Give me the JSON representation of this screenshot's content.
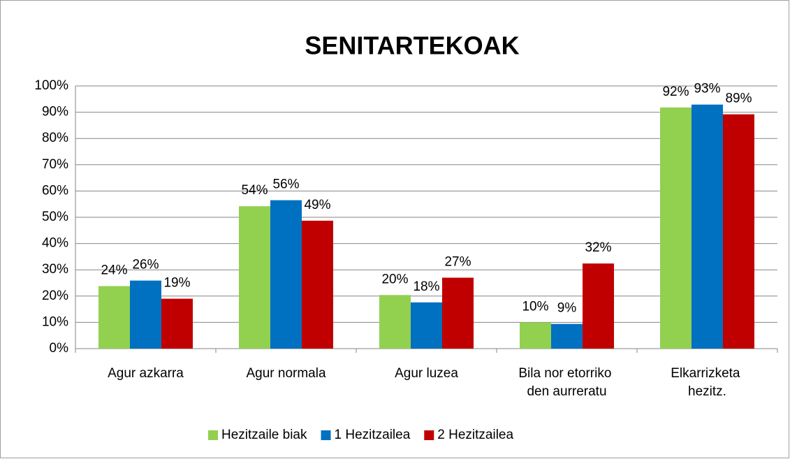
{
  "chart_data": {
    "type": "bar",
    "title": "SENITARTEKOAK",
    "categories": [
      "Agur azkarra",
      "Agur normala",
      "Agur luzea",
      "Bila nor etorriko den aurreratu",
      "Elkarrizketa hezitz."
    ],
    "series": [
      {
        "name": "Hezitzaile biak",
        "color": "#92d050",
        "values": [
          23.8,
          54.2,
          20.4,
          10,
          91.8
        ],
        "value_labels": [
          "24%",
          "54%",
          "20%",
          "10%",
          "92%"
        ]
      },
      {
        "name": "1 Hezitzailea",
        "color": "#0070c0",
        "values": [
          25.9,
          56.5,
          17.6,
          9.4,
          92.9
        ],
        "value_labels": [
          "26%",
          "56%",
          "18%",
          "9%",
          "93%"
        ]
      },
      {
        "name": "2 Hezitzailea",
        "color": "#c00000",
        "values": [
          19,
          48.7,
          27,
          32.4,
          89.2
        ],
        "value_labels": [
          "19%",
          "49%",
          "27%",
          "32%",
          "89%"
        ]
      }
    ],
    "ylim": [
      0,
      100
    ],
    "yticks": [
      {
        "value": 0,
        "label": "0%"
      },
      {
        "value": 10,
        "label": "10%"
      },
      {
        "value": 20,
        "label": "20%"
      },
      {
        "value": 30,
        "label": "30%"
      },
      {
        "value": 40,
        "label": "40%"
      },
      {
        "value": 50,
        "label": "50%"
      },
      {
        "value": 60,
        "label": "60%"
      },
      {
        "value": 70,
        "label": "70%"
      },
      {
        "value": 80,
        "label": "80%"
      },
      {
        "value": 90,
        "label": "90%"
      },
      {
        "value": 100,
        "label": "100%"
      }
    ],
    "grid": true,
    "legend": "bottom"
  }
}
